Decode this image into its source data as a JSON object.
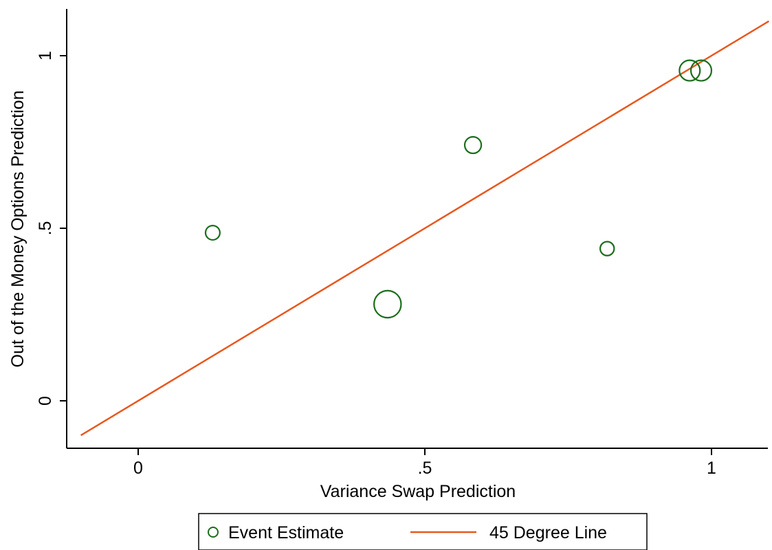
{
  "chart_data": {
    "type": "scatter",
    "title": "",
    "xlabel": "Variance Swap Prediction",
    "ylabel": "Out of the Money Options Prediction",
    "xlim": [
      -0.12,
      1.1
    ],
    "ylim": [
      -0.13,
      1.14
    ],
    "x_ticks": [
      {
        "value": 0,
        "label": "0"
      },
      {
        "value": 0.5,
        "label": ".5"
      },
      {
        "value": 1,
        "label": "1"
      }
    ],
    "y_ticks": [
      {
        "value": 0,
        "label": "0"
      },
      {
        "value": 0.5,
        "label": ".5"
      },
      {
        "value": 1,
        "label": "1"
      }
    ],
    "grid": false,
    "legend": {
      "placement": "bottom",
      "entries": [
        "Event Estimate",
        "45 Degree Line"
      ]
    },
    "series": [
      {
        "name": "Event Estimate",
        "kind": "scatter",
        "marker": "hollow circle, size proportional to weight",
        "color": "#1a6e1a",
        "points": [
          {
            "x": 0.13,
            "y": 0.487,
            "weight": 0.9
          },
          {
            "x": 0.435,
            "y": 0.28,
            "weight": 3.2
          },
          {
            "x": 0.584,
            "y": 0.741,
            "weight": 1.2
          },
          {
            "x": 0.818,
            "y": 0.441,
            "weight": 0.85
          },
          {
            "x": 0.962,
            "y": 0.957,
            "weight": 1.85
          },
          {
            "x": 0.982,
            "y": 0.957,
            "weight": 1.85
          }
        ]
      },
      {
        "name": "45 Degree Line",
        "kind": "line",
        "color": "#e8581e",
        "points": [
          {
            "x": -0.1,
            "y": -0.1
          },
          {
            "x": 1.1,
            "y": 1.1
          }
        ]
      }
    ]
  }
}
